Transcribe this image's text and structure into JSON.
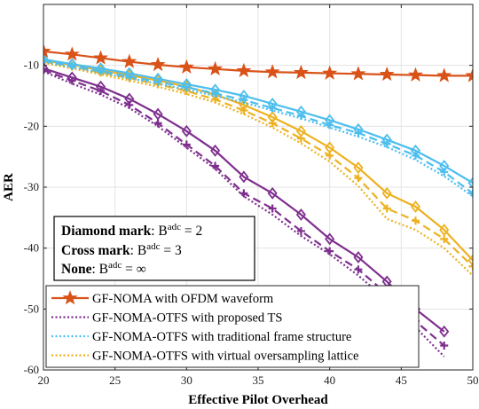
{
  "chart_data": {
    "type": "line",
    "xlabel": "Effective Pilot Overhead",
    "ylabel": "AER",
    "xlim": [
      20,
      50
    ],
    "ylim": [
      -60,
      0
    ],
    "xticks": [
      20,
      25,
      30,
      35,
      40,
      45,
      50
    ],
    "yticks": [
      -10,
      -20,
      -30,
      -40,
      -50,
      -60
    ],
    "grid": true,
    "colors": {
      "ofdm": "#d95319",
      "proposed": "#7e2f8e",
      "traditional": "#4dbeee",
      "virtual": "#edb120"
    },
    "annotation": {
      "lines": [
        {
          "bold": "Diamond mark",
          "rest": ": B",
          "sup": "adc",
          "tail": " = 2"
        },
        {
          "bold": "Cross mark",
          "rest": ": B",
          "sup": "adc",
          "tail": " = 3"
        },
        {
          "bold": "None",
          "rest": ": B",
          "sup": "adc",
          "tail": " = ∞"
        }
      ]
    },
    "legend": {
      "placement": "bottom-left",
      "entries": [
        "GF-NOMA with OFDM waveform",
        "GF-NOMA-OTFS with proposed TS",
        "GF-NOMA-OTFS with traditional frame structure",
        "GF-NOMA-OTFS with virtual oversampling lattice"
      ]
    },
    "series": [
      {
        "name": "GF-NOMA with OFDM waveform",
        "color_key": "ofdm",
        "marker": "star",
        "dash": "solid",
        "x": [
          20,
          22,
          24,
          26,
          28,
          30,
          32,
          34,
          36,
          38,
          40,
          42,
          44,
          46,
          48,
          50
        ],
        "y": [
          -7.7,
          -8.2,
          -8.8,
          -9.4,
          -9.9,
          -10.3,
          -10.6,
          -10.9,
          -11.1,
          -11.2,
          -11.3,
          -11.4,
          -11.5,
          -11.6,
          -11.7,
          -11.7
        ]
      },
      {
        "color_key": "proposed",
        "marker": "diamond",
        "dash": "solid",
        "x": [
          20,
          22,
          24,
          26,
          28,
          30,
          32,
          34,
          36,
          38,
          40,
          42,
          44,
          46,
          48
        ],
        "y": [
          -10.5,
          -12.0,
          -13.5,
          -15.5,
          -18.0,
          -20.8,
          -24.0,
          -28.3,
          -31.0,
          -34.5,
          -38.5,
          -41.5,
          -45.5,
          -50.0,
          -53.7
        ]
      },
      {
        "color_key": "proposed",
        "marker": "cross",
        "dash": "dashed",
        "x": [
          20,
          22,
          24,
          26,
          28,
          30,
          32,
          34,
          36,
          38,
          40,
          42,
          44,
          46,
          48
        ],
        "y": [
          -10.8,
          -12.5,
          -14.2,
          -16.5,
          -19.5,
          -23.0,
          -26.5,
          -31.0,
          -33.5,
          -37.2,
          -40.5,
          -43.5,
          -47.5,
          -52.0,
          -56.0
        ]
      },
      {
        "color_key": "proposed",
        "marker": "none",
        "dash": "dotted",
        "x": [
          20,
          22,
          24,
          26,
          28,
          30,
          32,
          34,
          36,
          38,
          40,
          42,
          44,
          46,
          48
        ],
        "y": [
          -11.0,
          -13.0,
          -14.8,
          -17.0,
          -20.0,
          -23.5,
          -27.0,
          -31.5,
          -34.5,
          -38.0,
          -41.0,
          -44.5,
          -48.5,
          -53.0,
          -57.8
        ]
      },
      {
        "color_key": "traditional",
        "marker": "diamond",
        "dash": "solid",
        "x": [
          20,
          22,
          24,
          26,
          28,
          30,
          32,
          34,
          36,
          38,
          40,
          42,
          44,
          46,
          48,
          50
        ],
        "y": [
          -9.0,
          -9.8,
          -10.5,
          -11.3,
          -12.2,
          -13.1,
          -14.0,
          -15.0,
          -16.3,
          -17.6,
          -19.0,
          -20.5,
          -22.2,
          -24.0,
          -26.5,
          -29.3
        ]
      },
      {
        "color_key": "traditional",
        "marker": "cross",
        "dash": "dashed",
        "x": [
          20,
          22,
          24,
          26,
          28,
          30,
          32,
          34,
          36,
          38,
          40,
          42,
          44,
          46,
          48,
          50
        ],
        "y": [
          -9.2,
          -10.1,
          -10.9,
          -11.8,
          -12.7,
          -13.6,
          -14.6,
          -15.7,
          -17.0,
          -18.3,
          -19.8,
          -21.1,
          -22.9,
          -24.8,
          -27.5,
          -31.0
        ]
      },
      {
        "color_key": "traditional",
        "marker": "none",
        "dash": "dotted",
        "x": [
          20,
          22,
          24,
          26,
          28,
          30,
          32,
          34,
          36,
          38,
          40,
          42,
          44,
          46,
          48,
          50
        ],
        "y": [
          -9.4,
          -10.3,
          -11.2,
          -12.1,
          -13.0,
          -14.0,
          -15.0,
          -16.1,
          -17.4,
          -18.7,
          -20.2,
          -21.7,
          -23.4,
          -25.5,
          -28.2,
          -31.5
        ]
      },
      {
        "color_key": "virtual",
        "marker": "diamond",
        "dash": "solid",
        "x": [
          20,
          22,
          24,
          26,
          28,
          30,
          32,
          34,
          36,
          38,
          40,
          42,
          44,
          46,
          48,
          50
        ],
        "y": [
          -9.2,
          -9.9,
          -10.8,
          -11.6,
          -12.5,
          -13.5,
          -14.8,
          -16.5,
          -18.5,
          -20.8,
          -23.5,
          -26.8,
          -31.0,
          -33.2,
          -37.0,
          -42.0
        ]
      },
      {
        "color_key": "virtual",
        "marker": "cross",
        "dash": "dashed",
        "x": [
          20,
          22,
          24,
          26,
          28,
          30,
          32,
          34,
          36,
          38,
          40,
          42,
          44,
          46,
          48,
          50
        ],
        "y": [
          -9.4,
          -10.2,
          -11.2,
          -12.1,
          -13.1,
          -14.2,
          -15.6,
          -17.4,
          -19.5,
          -22.0,
          -24.8,
          -28.5,
          -33.5,
          -35.5,
          -38.5,
          -43.0
        ]
      },
      {
        "color_key": "virtual",
        "marker": "none",
        "dash": "dotted",
        "x": [
          20,
          22,
          24,
          26,
          28,
          30,
          32,
          34,
          36,
          38,
          40,
          42,
          44,
          46,
          48,
          50
        ],
        "y": [
          -9.6,
          -10.5,
          -11.5,
          -12.5,
          -13.5,
          -14.7,
          -16.1,
          -18.0,
          -20.2,
          -22.8,
          -25.8,
          -29.8,
          -35.2,
          -37.0,
          -40.0,
          -44.5
        ]
      }
    ]
  }
}
